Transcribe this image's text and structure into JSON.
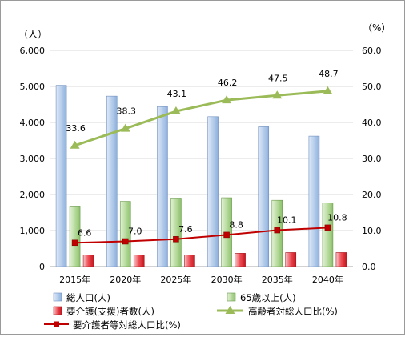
{
  "chart_data": {
    "type": "bar",
    "categories": [
      "2015年",
      "2020年",
      "2025年",
      "2030年",
      "2035年",
      "2040年"
    ],
    "y_left_unit": "（人）",
    "y_right_unit": "（%）",
    "y_left_range": [
      0,
      6000
    ],
    "y_left_ticks": [
      "0",
      "1,000",
      "2,000",
      "3,000",
      "4,000",
      "5,000",
      "6,000"
    ],
    "y_right_range": [
      0,
      60
    ],
    "y_right_ticks": [
      "0.0",
      "10.0",
      "20.0",
      "30.0",
      "40.0",
      "50.0",
      "60.0"
    ],
    "grid": true,
    "legend_position": "bottom",
    "series": [
      {
        "name": "総人口(人)",
        "type": "bar",
        "axis": "left",
        "color": "#a9c4e8",
        "values": [
          5030,
          4730,
          4440,
          4160,
          3880,
          3620
        ]
      },
      {
        "name": "65歳以上(人)",
        "type": "bar",
        "axis": "left",
        "color": "#a8d08d",
        "values": [
          1680,
          1810,
          1900,
          1910,
          1840,
          1770
        ]
      },
      {
        "name": "要介護(支援)者数(人)",
        "type": "bar",
        "axis": "left",
        "color": "#e8424a",
        "values": [
          320,
          320,
          320,
          370,
          390,
          390
        ]
      },
      {
        "name": "高齢者対総人口比(%)",
        "type": "line",
        "axis": "right",
        "color": "#9bbb59",
        "marker": "triangle",
        "values": [
          33.6,
          38.3,
          43.1,
          46.2,
          47.5,
          48.7
        ],
        "labels": [
          "33.6",
          "38.3",
          "43.1",
          "46.2",
          "47.5",
          "48.7"
        ]
      },
      {
        "name": "要介護者等対総人口比(%)",
        "type": "line",
        "axis": "right",
        "color": "#c00000",
        "marker": "square",
        "values": [
          6.6,
          7.0,
          7.6,
          8.8,
          10.1,
          10.8
        ],
        "labels": [
          "6.6",
          "7.0",
          "7.6",
          "8.8",
          "10.1",
          "10.8"
        ]
      }
    ]
  }
}
